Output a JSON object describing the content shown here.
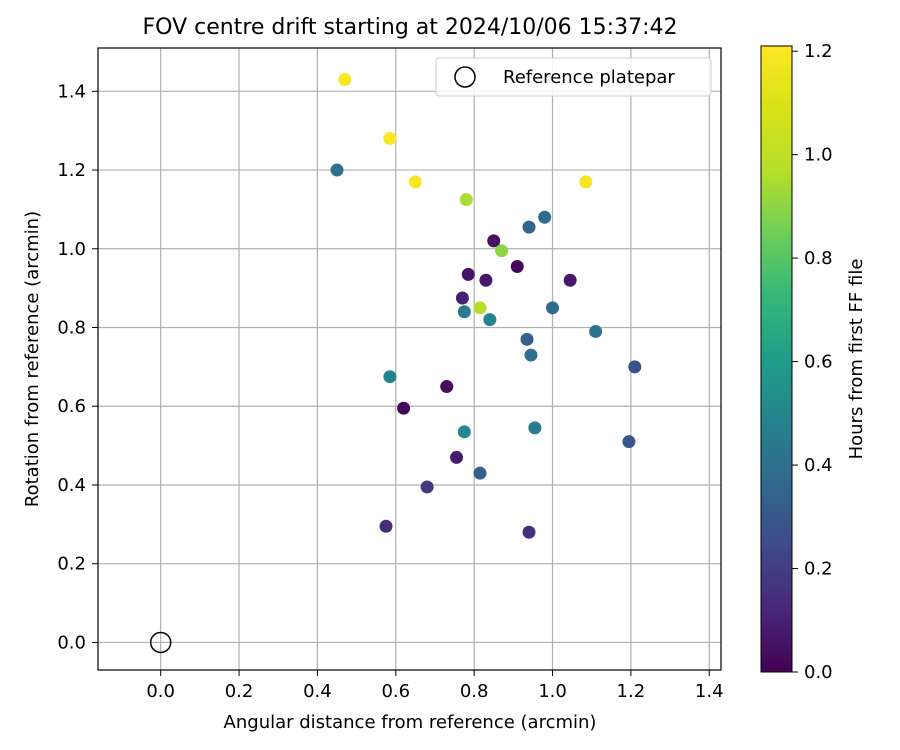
{
  "chart_data": {
    "type": "scatter",
    "title": "FOV centre drift starting at 2024/10/06 15:37:42",
    "xlabel": "Angular distance from reference (arcmin)",
    "ylabel": "Rotation from reference (arcmin)",
    "xlim": [
      -0.16,
      1.43
    ],
    "ylim": [
      -0.07,
      1.51
    ],
    "xticks": [
      "0.0",
      "0.2",
      "0.4",
      "0.6",
      "0.8",
      "1.0",
      "1.2",
      "1.4"
    ],
    "xtick_values": [
      0.0,
      0.2,
      0.4,
      0.6,
      0.8,
      1.0,
      1.2,
      1.4
    ],
    "yticks": [
      "0.0",
      "0.2",
      "0.4",
      "0.6",
      "0.8",
      "1.0",
      "1.2",
      "1.4"
    ],
    "ytick_values": [
      0.0,
      0.2,
      0.4,
      0.6,
      0.8,
      1.0,
      1.2,
      1.4
    ],
    "grid": true,
    "legend": {
      "position": "upper right",
      "entries": [
        "Reference platepar"
      ]
    },
    "reference_point": {
      "x": 0.0,
      "y": 0.0,
      "label": "Reference platepar",
      "marker": "hollow-circle"
    },
    "colorbar": {
      "label": "Hours from first FF file",
      "range": [
        0.0,
        1.21
      ],
      "ticks": [
        "0.0",
        "0.2",
        "0.4",
        "0.6",
        "0.8",
        "1.0",
        "1.2"
      ],
      "tick_values": [
        0.0,
        0.2,
        0.4,
        0.6,
        0.8,
        1.0,
        1.2
      ],
      "colormap": "viridis"
    },
    "points": [
      {
        "x": 0.47,
        "y": 1.43,
        "t": 1.2
      },
      {
        "x": 0.585,
        "y": 1.28,
        "t": 1.2
      },
      {
        "x": 0.45,
        "y": 1.2,
        "t": 0.4
      },
      {
        "x": 0.65,
        "y": 1.17,
        "t": 1.2
      },
      {
        "x": 1.085,
        "y": 1.17,
        "t": 1.18
      },
      {
        "x": 0.78,
        "y": 1.125,
        "t": 0.95
      },
      {
        "x": 0.98,
        "y": 1.08,
        "t": 0.38
      },
      {
        "x": 0.94,
        "y": 1.055,
        "t": 0.36
      },
      {
        "x": 0.85,
        "y": 1.02,
        "t": 0.05
      },
      {
        "x": 0.87,
        "y": 0.995,
        "t": 0.9
      },
      {
        "x": 0.91,
        "y": 0.955,
        "t": 0.02
      },
      {
        "x": 0.785,
        "y": 0.935,
        "t": 0.06
      },
      {
        "x": 0.83,
        "y": 0.92,
        "t": 0.07
      },
      {
        "x": 1.045,
        "y": 0.92,
        "t": 0.08
      },
      {
        "x": 0.77,
        "y": 0.875,
        "t": 0.1
      },
      {
        "x": 0.815,
        "y": 0.85,
        "t": 0.97
      },
      {
        "x": 1.0,
        "y": 0.85,
        "t": 0.38
      },
      {
        "x": 0.775,
        "y": 0.84,
        "t": 0.44
      },
      {
        "x": 0.84,
        "y": 0.82,
        "t": 0.5
      },
      {
        "x": 1.11,
        "y": 0.79,
        "t": 0.42
      },
      {
        "x": 0.935,
        "y": 0.77,
        "t": 0.33
      },
      {
        "x": 0.945,
        "y": 0.73,
        "t": 0.39
      },
      {
        "x": 1.21,
        "y": 0.7,
        "t": 0.28
      },
      {
        "x": 0.585,
        "y": 0.675,
        "t": 0.48
      },
      {
        "x": 0.73,
        "y": 0.65,
        "t": 0.03
      },
      {
        "x": 0.62,
        "y": 0.595,
        "t": 0.02
      },
      {
        "x": 0.955,
        "y": 0.545,
        "t": 0.45
      },
      {
        "x": 0.775,
        "y": 0.535,
        "t": 0.5
      },
      {
        "x": 1.195,
        "y": 0.51,
        "t": 0.3
      },
      {
        "x": 0.755,
        "y": 0.47,
        "t": 0.08
      },
      {
        "x": 0.815,
        "y": 0.43,
        "t": 0.33
      },
      {
        "x": 0.68,
        "y": 0.395,
        "t": 0.18
      },
      {
        "x": 0.575,
        "y": 0.295,
        "t": 0.14
      },
      {
        "x": 0.94,
        "y": 0.28,
        "t": 0.15
      }
    ]
  }
}
